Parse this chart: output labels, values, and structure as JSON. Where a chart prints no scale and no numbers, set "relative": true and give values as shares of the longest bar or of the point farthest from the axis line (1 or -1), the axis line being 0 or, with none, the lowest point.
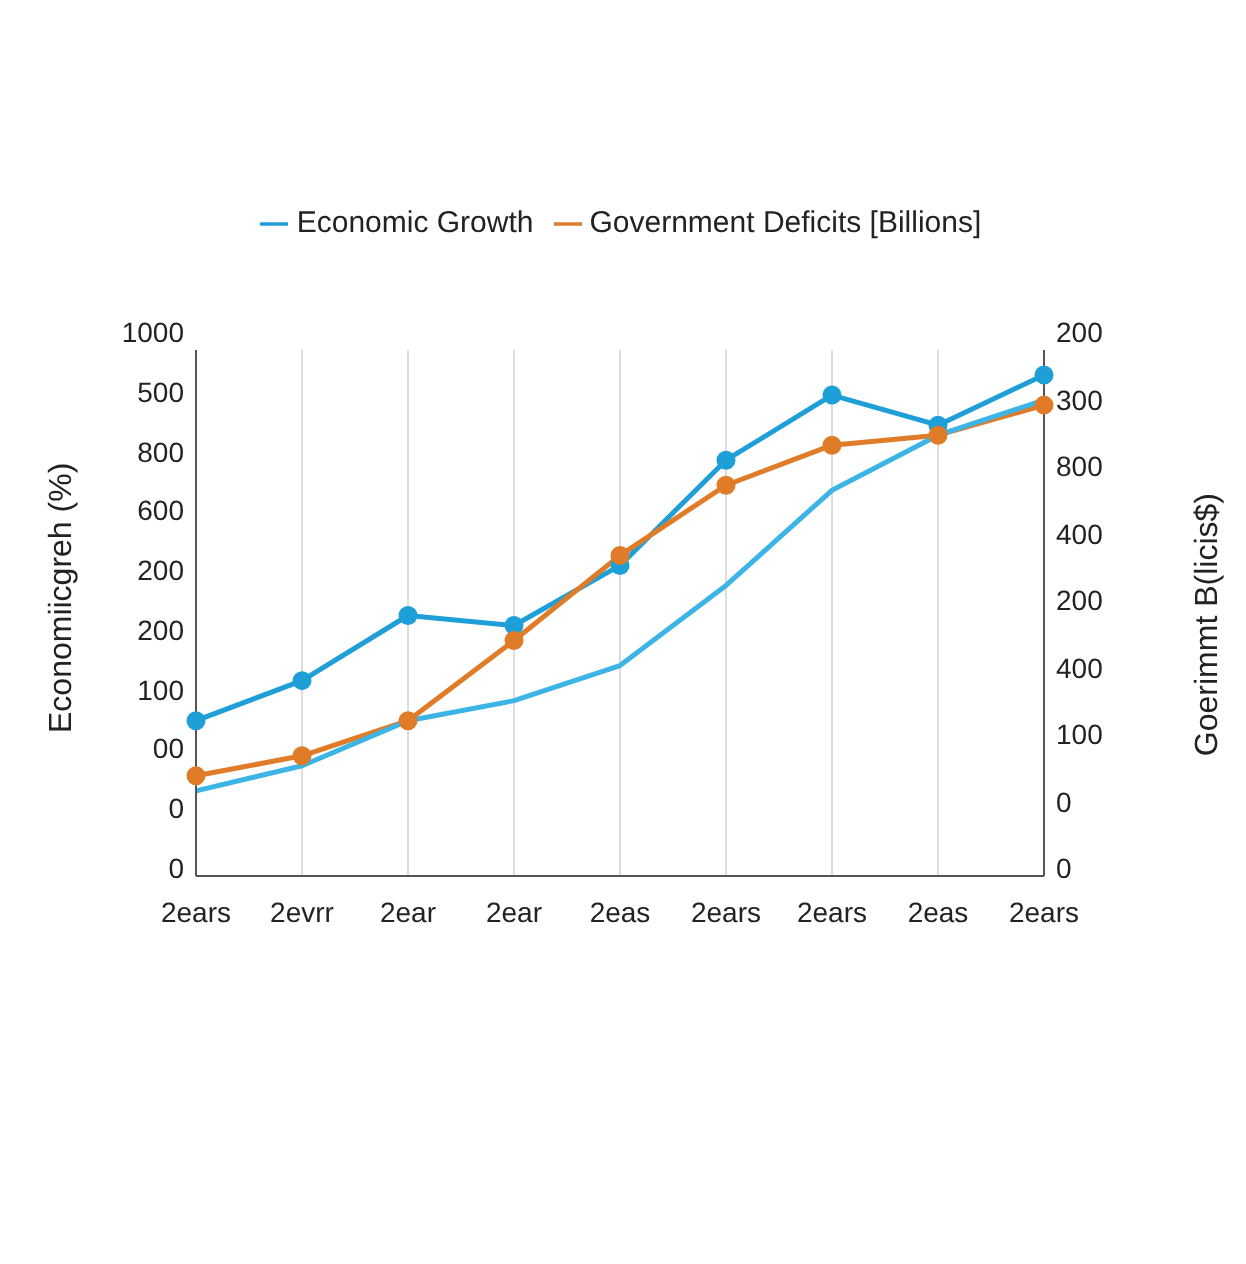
{
  "chart_data": {
    "type": "line",
    "relative": true,
    "ylabel": "Economiicgreh (%)",
    "y2label": "Goerimmt B(licis$)",
    "categories": [
      "2ears",
      "2evrr",
      "2ear",
      "2ear",
      "2eas",
      "2ears",
      "2ears",
      "2eas",
      "2ears"
    ],
    "series": [
      {
        "name": "Economic Growth",
        "color": "#1f9fd8",
        "marker": "circle",
        "values": [
          0.31,
          0.39,
          0.52,
          0.5,
          0.62,
          0.83,
          0.96,
          0.9,
          1
        ]
      },
      {
        "name": "Government Deficits [Billions]",
        "color": "#e07b28",
        "marker": "circle",
        "axis": "y2",
        "values": [
          0.2,
          0.24,
          0.31,
          0.47,
          0.64,
          0.78,
          0.86,
          0.88,
          0.94
        ]
      },
      {
        "color": "#3cb4e6",
        "marker": "none",
        "values": [
          0.17,
          0.22,
          0.31,
          0.35,
          0.42,
          0.58,
          0.77,
          0.88,
          0.95
        ]
      }
    ],
    "annotations": [
      "1000",
      "500",
      "800",
      "600",
      "200",
      "200",
      "100",
      "00",
      "0",
      "0",
      "200",
      "300",
      "800",
      "400",
      "200",
      "400",
      "100",
      "0",
      "0"
    ],
    "grid": "x",
    "legend": "top",
    "line_style": "solid"
  }
}
